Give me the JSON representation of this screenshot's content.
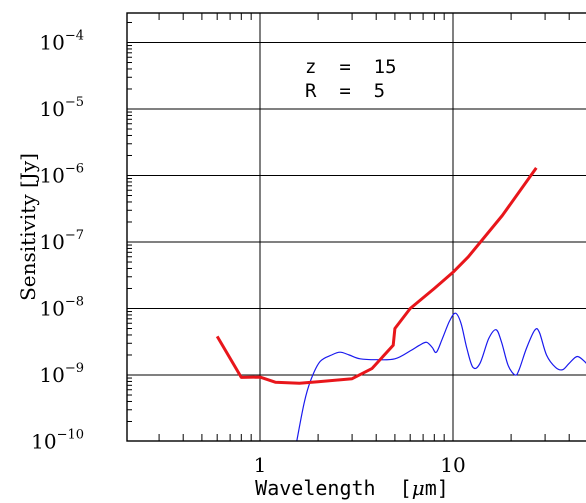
{
  "chart_data": {
    "type": "line",
    "title": "",
    "xlabel_pre": "Wavelength  [",
    "xlabel_mu": "μ",
    "xlabel_post": "m]",
    "ylabel": "Sensitivity [Jy]",
    "xscale": "log",
    "yscale": "log",
    "xlim": [
      0.2,
      50
    ],
    "ylim": [
      1e-10,
      0.0003
    ],
    "grid": true,
    "xticks": [
      {
        "value": 1,
        "label": "1"
      },
      {
        "value": 10,
        "label": "10"
      }
    ],
    "yticks": [
      {
        "value": 1e-10,
        "base": "10",
        "exp": "−10"
      },
      {
        "value": 1e-09,
        "base": "10",
        "exp": "−9"
      },
      {
        "value": 1e-08,
        "base": "10",
        "exp": "−8"
      },
      {
        "value": 1e-07,
        "base": "10",
        "exp": "−7"
      },
      {
        "value": 1e-06,
        "base": "10",
        "exp": "−6"
      },
      {
        "value": 1e-05,
        "base": "10",
        "exp": "−5"
      },
      {
        "value": 0.0001,
        "base": "10",
        "exp": "−4"
      }
    ],
    "annotations": [
      "z  =  15",
      "R  =  5"
    ],
    "series": [
      {
        "color": "#e8161b",
        "points": [
          [
            0.6,
            3.8e-09
          ],
          [
            0.8,
            9.2e-10
          ],
          [
            1.0,
            9.3e-10
          ],
          [
            1.2,
            7.8e-10
          ],
          [
            1.6,
            7.5e-10
          ],
          [
            2.0,
            7.9e-10
          ],
          [
            3.0,
            8.8e-10
          ],
          [
            3.8,
            1.25e-09
          ],
          [
            4.9,
            2.8e-09
          ],
          [
            5.0,
            5e-09
          ],
          [
            6.0,
            1e-08
          ],
          [
            8.0,
            2e-08
          ],
          [
            10.0,
            3.5e-08
          ],
          [
            12.0,
            6e-08
          ],
          [
            18.0,
            2.5e-07
          ],
          [
            27.0,
            1.3e-06
          ]
        ]
      },
      {
        "color": "#1a1aee",
        "points": [
          [
            1.55,
            1e-10
          ],
          [
            1.7,
            4e-10
          ],
          [
            1.85,
            9e-10
          ],
          [
            2.05,
            1.6e-09
          ],
          [
            2.35,
            2e-09
          ],
          [
            2.6,
            2.2e-09
          ],
          [
            2.9,
            2e-09
          ],
          [
            3.3,
            1.75e-09
          ],
          [
            4.0,
            1.7e-09
          ],
          [
            5.0,
            1.75e-09
          ],
          [
            6.0,
            2.3e-09
          ],
          [
            6.7,
            2.8e-09
          ],
          [
            7.3,
            3.1e-09
          ],
          [
            7.8,
            2.6e-09
          ],
          [
            8.2,
            2.2e-09
          ],
          [
            8.8,
            3.5e-09
          ],
          [
            9.6,
            6.5e-09
          ],
          [
            10.3,
            8.5e-09
          ],
          [
            11.0,
            6e-09
          ],
          [
            11.8,
            2.5e-09
          ],
          [
            12.7,
            1.3e-09
          ],
          [
            13.8,
            1.5e-09
          ],
          [
            15.3,
            3.5e-09
          ],
          [
            16.7,
            4.8e-09
          ],
          [
            17.8,
            3.2e-09
          ],
          [
            19.3,
            1.4e-09
          ],
          [
            21.0,
            1e-09
          ],
          [
            22.0,
            1.2e-09
          ],
          [
            24.0,
            2.5e-09
          ],
          [
            26.5,
            4.7e-09
          ],
          [
            28.0,
            4.4e-09
          ],
          [
            30.5,
            2e-09
          ],
          [
            34.0,
            1.3e-09
          ],
          [
            37.0,
            1.2e-09
          ],
          [
            40.0,
            1.5e-09
          ],
          [
            44.0,
            1.9e-09
          ],
          [
            48.0,
            1.6e-09
          ],
          [
            50.0,
            1.4e-09
          ]
        ]
      }
    ]
  }
}
